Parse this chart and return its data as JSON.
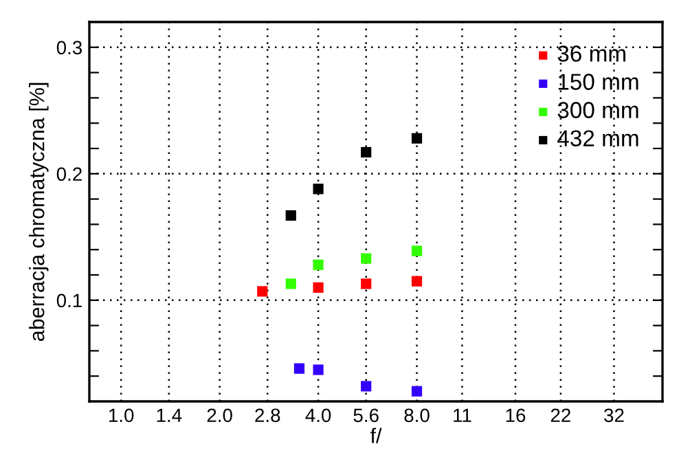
{
  "chart_data": {
    "type": "scatter",
    "xlabel": "f/",
    "ylabel": "aberracja chromatyczna [%]",
    "log": "x",
    "marker": "square",
    "grid": true,
    "legend": "top right",
    "xlim": [
      0.8,
      45
    ],
    "ylim": [
      0.02,
      0.32
    ],
    "xticks": [
      {
        "value": 1,
        "label": "1.0"
      },
      1.4,
      {
        "value": 2,
        "label": "2.0"
      },
      2.8,
      {
        "value": 4,
        "label": "4.0"
      },
      5.6,
      {
        "value": 8,
        "label": "8.0"
      },
      11,
      16,
      22,
      32
    ],
    "yticks": [
      {
        "value": 0.04,
        "label": null
      },
      {
        "value": 0.06,
        "label": null
      },
      {
        "value": 0.08,
        "label": null
      },
      0.1,
      {
        "value": 0.12,
        "label": null
      },
      {
        "value": 0.14,
        "label": null
      },
      {
        "value": 0.16,
        "label": null
      },
      {
        "value": 0.18,
        "label": null
      },
      0.2,
      {
        "value": 0.22,
        "label": null
      },
      {
        "value": 0.24,
        "label": null
      },
      {
        "value": 0.26,
        "label": null
      },
      {
        "value": 0.28,
        "label": null
      },
      0.3
    ],
    "series": [
      {
        "name": "36 mm",
        "color": "#ff0000",
        "x": [
          2.7,
          4,
          5.6,
          8
        ],
        "values": [
          0.107,
          0.11,
          0.113,
          0.115
        ]
      },
      {
        "name": "150 mm",
        "color": "#3300ff",
        "x": [
          3.5,
          4,
          5.6,
          8
        ],
        "values": [
          0.046,
          0.045,
          0.032,
          0.028
        ]
      },
      {
        "name": "300 mm",
        "color": "#33ff00",
        "x": [
          3.3,
          4,
          5.6,
          8
        ],
        "values": [
          0.113,
          0.128,
          0.133,
          0.139
        ]
      },
      {
        "name": "432 mm",
        "color": "#000000",
        "x": [
          3.3,
          4,
          5.6,
          8
        ],
        "values": [
          0.167,
          0.188,
          0.217,
          0.228
        ]
      }
    ]
  }
}
